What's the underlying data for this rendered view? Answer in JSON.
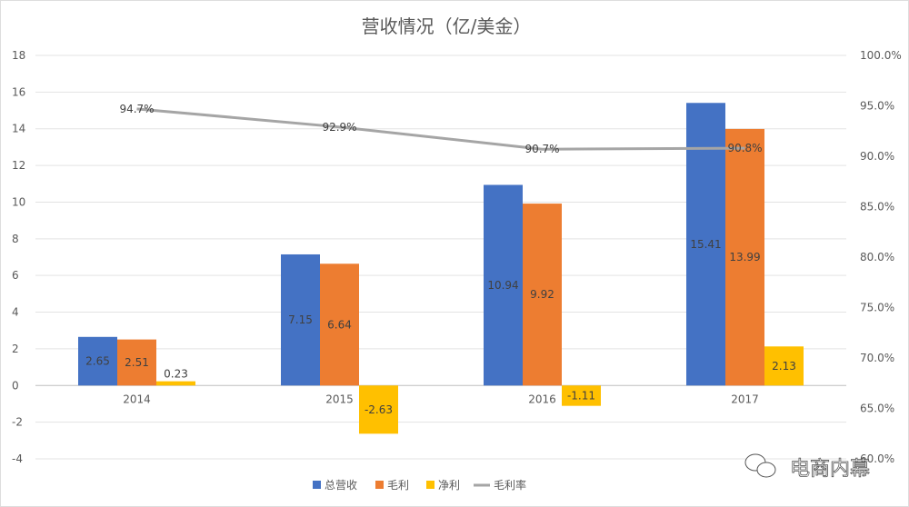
{
  "chart_data": {
    "type": "bar",
    "title": "营收情况（亿/美金）",
    "categories": [
      "2014",
      "2015",
      "2016",
      "2017"
    ],
    "series": [
      {
        "name": "总营收",
        "type": "bar",
        "axis": "left",
        "color": "#4472C4",
        "values": [
          2.65,
          7.15,
          10.94,
          15.41
        ]
      },
      {
        "name": "毛利",
        "type": "bar",
        "axis": "left",
        "color": "#ED7D31",
        "values": [
          2.51,
          6.64,
          9.92,
          13.99
        ]
      },
      {
        "name": "净利",
        "type": "bar",
        "axis": "left",
        "color": "#FFC000",
        "values": [
          0.23,
          -2.63,
          -1.11,
          2.13
        ]
      },
      {
        "name": "毛利率",
        "type": "line",
        "axis": "right",
        "color": "#A5A5A5",
        "values": [
          94.7,
          92.9,
          90.7,
          90.8
        ],
        "labels": [
          "94.7%",
          "92.9%",
          "90.7%",
          "90.8%"
        ]
      }
    ],
    "left_axis": {
      "ylim": [
        -4,
        18
      ],
      "ticks": [
        "-4",
        "-2",
        "0",
        "2",
        "4",
        "6",
        "8",
        "10",
        "12",
        "14",
        "16",
        "18"
      ]
    },
    "right_axis": {
      "ylim": [
        60,
        100
      ],
      "ticks": [
        "60.0%",
        "65.0%",
        "70.0%",
        "75.0%",
        "80.0%",
        "85.0%",
        "90.0%",
        "95.0%",
        "100.0%"
      ]
    },
    "grid": true,
    "legend": "bottom"
  },
  "watermark": {
    "text": "电商内幕",
    "icon": "wechat-icon"
  }
}
